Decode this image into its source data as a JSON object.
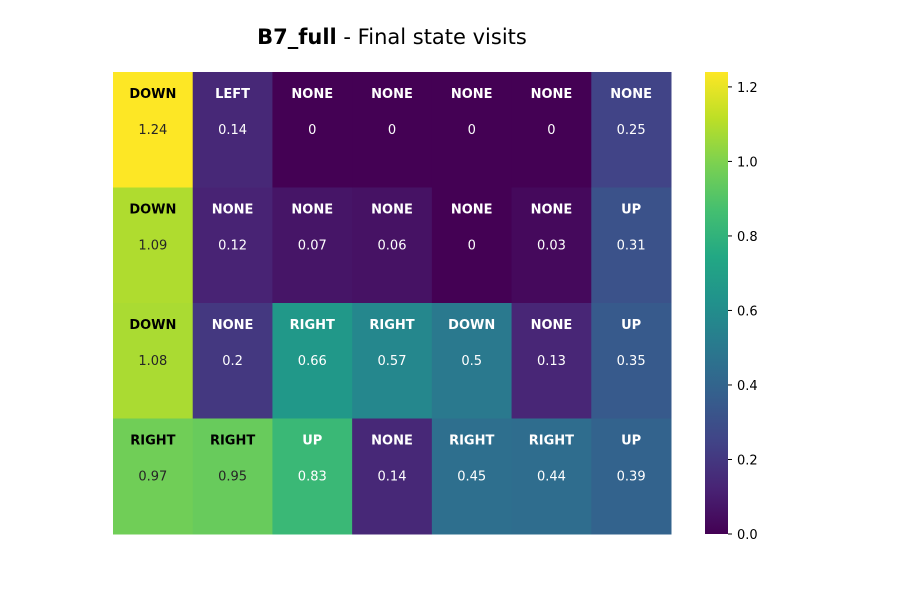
{
  "chart_data": {
    "type": "heatmap",
    "title_bold": "B7_full",
    "title_rest": " - Final state visits",
    "xlabel": "",
    "ylabel": "",
    "colormap": "viridis",
    "vmin": 0.0,
    "vmax": 1.24,
    "colorbar_ticks": [
      "0.0",
      "0.2",
      "0.4",
      "0.6",
      "0.8",
      "1.0",
      "1.2"
    ],
    "rows": [
      {
        "actions": [
          "DOWN",
          "LEFT",
          "NONE",
          "NONE",
          "NONE",
          "NONE",
          "NONE"
        ],
        "values": [
          1.24,
          0.14,
          0,
          0,
          0,
          0,
          0.25
        ]
      },
      {
        "actions": [
          "DOWN",
          "NONE",
          "NONE",
          "NONE",
          "NONE",
          "NONE",
          "UP"
        ],
        "values": [
          1.09,
          0.12,
          0.07,
          0.06,
          0,
          0.03,
          0.31
        ]
      },
      {
        "actions": [
          "DOWN",
          "NONE",
          "RIGHT",
          "RIGHT",
          "DOWN",
          "NONE",
          "UP"
        ],
        "values": [
          1.08,
          0.2,
          0.66,
          0.57,
          0.5,
          0.13,
          0.35
        ]
      },
      {
        "actions": [
          "RIGHT",
          "RIGHT",
          "UP",
          "NONE",
          "RIGHT",
          "RIGHT",
          "UP"
        ],
        "values": [
          0.97,
          0.95,
          0.83,
          0.14,
          0.45,
          0.44,
          0.39
        ]
      }
    ]
  }
}
